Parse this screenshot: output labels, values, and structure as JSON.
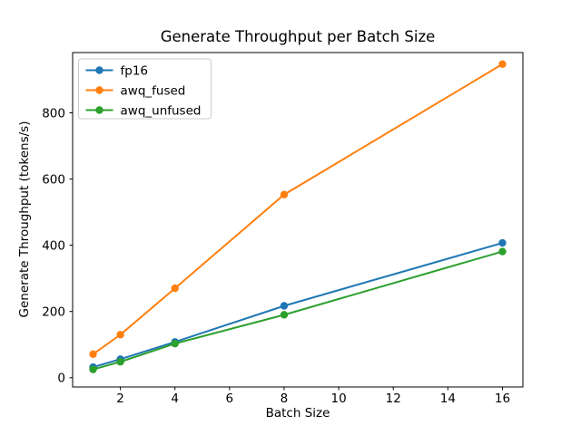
{
  "title": "Generate Throughput per Batch Size",
  "chart_data": {
    "type": "line",
    "title": "Generate Throughput per Batch Size",
    "xlabel": "Batch Size",
    "ylabel": "Generate Throughput (tokens/s)",
    "x": [
      1,
      2,
      4,
      8,
      16
    ],
    "series": [
      {
        "name": "fp16",
        "color": "#1f77b4",
        "values": [
          32,
          56,
          108,
          217,
          407
        ]
      },
      {
        "name": "awq_fused",
        "color": "#ff7f0e",
        "values": [
          71,
          130,
          270,
          553,
          947
        ]
      },
      {
        "name": "awq_unfused",
        "color": "#2ca02c",
        "values": [
          25,
          48,
          103,
          190,
          381
        ]
      }
    ],
    "xticks": [
      2,
      4,
      6,
      8,
      10,
      12,
      14,
      16
    ],
    "yticks": [
      0,
      200,
      400,
      600,
      800
    ],
    "xlim": [
      0.25,
      16.75
    ],
    "ylim": [
      -28,
      982
    ],
    "grid": false,
    "legend_position": "upper left",
    "background_color": "#ffffff",
    "spine_color": "#000000",
    "legend_border_color": "#cccccc"
  }
}
